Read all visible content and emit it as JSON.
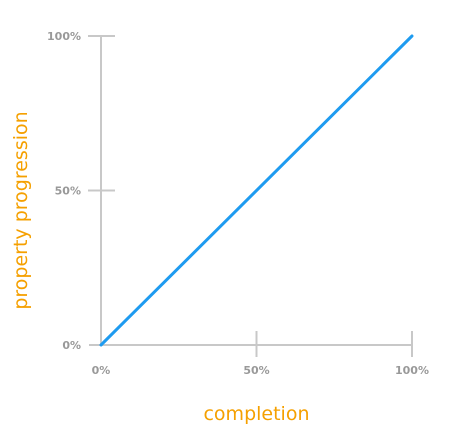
{
  "chart_data": {
    "type": "line",
    "xlabel": "completion",
    "ylabel": "property progression",
    "xlim": [
      0,
      100
    ],
    "ylim": [
      0,
      100
    ],
    "x_ticks": [
      {
        "value": 0,
        "label": "0%"
      },
      {
        "value": 50,
        "label": "50%"
      },
      {
        "value": 100,
        "label": "100%"
      }
    ],
    "y_ticks": [
      {
        "value": 0,
        "label": "0%"
      },
      {
        "value": 50,
        "label": "50%"
      },
      {
        "value": 100,
        "label": "100%"
      }
    ],
    "series": [
      {
        "x": [
          0,
          100
        ],
        "y": [
          0,
          100
        ]
      }
    ],
    "grid": false,
    "legend": "none"
  },
  "colors": {
    "line": "#1e9bf0",
    "axis": "#c8c8c8",
    "tick_label": "#999999",
    "axis_title": "#f5a000"
  }
}
